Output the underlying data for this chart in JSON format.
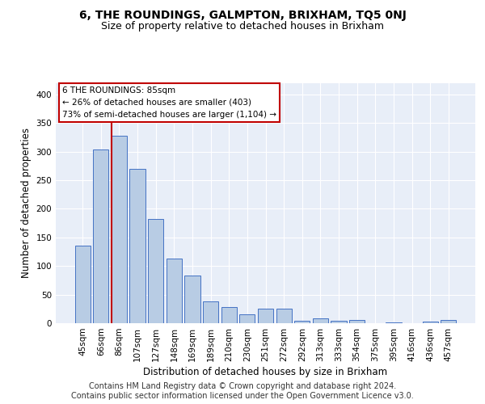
{
  "title": "6, THE ROUNDINGS, GALMPTON, BRIXHAM, TQ5 0NJ",
  "subtitle": "Size of property relative to detached houses in Brixham",
  "xlabel": "Distribution of detached houses by size in Brixham",
  "ylabel": "Number of detached properties",
  "categories": [
    "45sqm",
    "66sqm",
    "86sqm",
    "107sqm",
    "127sqm",
    "148sqm",
    "169sqm",
    "189sqm",
    "210sqm",
    "230sqm",
    "251sqm",
    "272sqm",
    "292sqm",
    "313sqm",
    "333sqm",
    "354sqm",
    "375sqm",
    "395sqm",
    "416sqm",
    "436sqm",
    "457sqm"
  ],
  "values": [
    135,
    303,
    327,
    270,
    182,
    113,
    83,
    38,
    28,
    16,
    25,
    25,
    4,
    9,
    4,
    5,
    0,
    2,
    0,
    3,
    5
  ],
  "bar_color": "#b8cce4",
  "bar_edge_color": "#4472c4",
  "highlight_bar_index": 2,
  "highlight_line_color": "#c00000",
  "annotation_line1": "6 THE ROUNDINGS: 85sqm",
  "annotation_line2": "← 26% of detached houses are smaller (403)",
  "annotation_line3": "73% of semi-detached houses are larger (1,104) →",
  "annotation_box_color": "#ffffff",
  "annotation_box_edge_color": "#c00000",
  "ylim": [
    0,
    420
  ],
  "yticks": [
    0,
    50,
    100,
    150,
    200,
    250,
    300,
    350,
    400
  ],
  "background_color": "#e8eef8",
  "footer_text": "Contains HM Land Registry data © Crown copyright and database right 2024.\nContains public sector information licensed under the Open Government Licence v3.0.",
  "title_fontsize": 10,
  "subtitle_fontsize": 9,
  "label_fontsize": 8.5,
  "tick_fontsize": 7.5,
  "footer_fontsize": 7
}
